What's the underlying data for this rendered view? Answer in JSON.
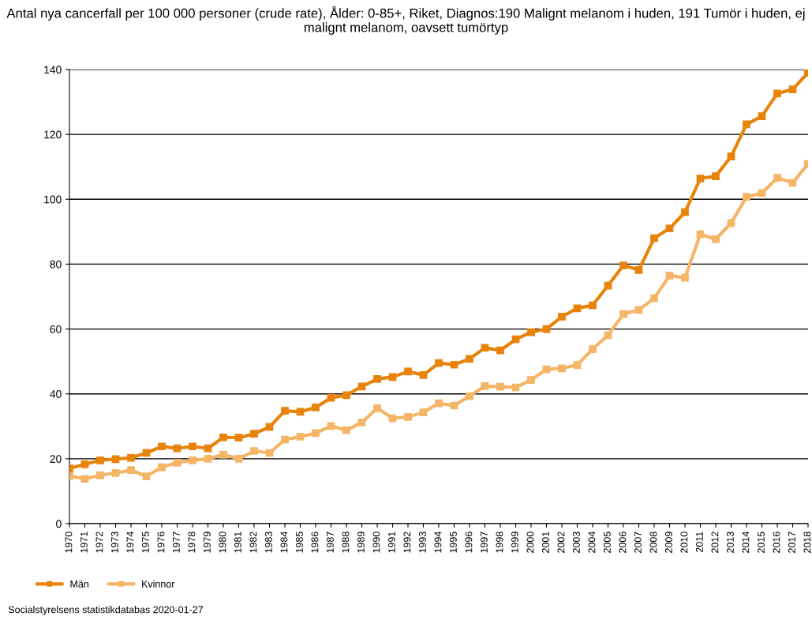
{
  "chart_data": {
    "type": "line",
    "title": "Antal nya cancerfall per 100 000 personer (crude rate), Ålder: 0-85+, Riket, Diagnos:190 Malignt melanom i huden, 191 Tumör i huden, ej malignt melanom, oavsett tumörtyp",
    "categories": [
      "1970",
      "1971",
      "1972",
      "1973",
      "1974",
      "1975",
      "1976",
      "1977",
      "1978",
      "1979",
      "1980",
      "1981",
      "1982",
      "1983",
      "1984",
      "1985",
      "1986",
      "1987",
      "1988",
      "1989",
      "1990",
      "1991",
      "1992",
      "1993",
      "1994",
      "1995",
      "1996",
      "1997",
      "1998",
      "1999",
      "2000",
      "2001",
      "2002",
      "2003",
      "2004",
      "2005",
      "2006",
      "2007",
      "2008",
      "2009",
      "2010",
      "2011",
      "2012",
      "2013",
      "2014",
      "2015",
      "2016",
      "2017",
      "2018"
    ],
    "series": [
      {
        "name": "Män",
        "color": "#e8830c",
        "values": [
          17,
          18.3,
          19.5,
          19.9,
          20.3,
          21.8,
          23.8,
          23.2,
          23.8,
          23.2,
          26.6,
          26.5,
          27.7,
          29.8,
          34.8,
          34.5,
          35.8,
          38.8,
          39.6,
          42.3,
          44.6,
          45.2,
          46.9,
          45.8,
          49.5,
          49,
          50.8,
          54.2,
          53.4,
          56.8,
          59,
          60,
          63.8,
          66.4,
          67.3,
          73.4,
          79.6,
          78.2,
          88,
          91,
          96,
          106.4,
          107.1,
          113.2,
          123.1,
          125.6,
          132.6,
          133.9,
          139
        ]
      },
      {
        "name": "Kvinnor",
        "color": "#f5b566",
        "values": [
          14.7,
          13.8,
          14.9,
          15.6,
          16.5,
          14.6,
          17.4,
          18.8,
          19.5,
          20,
          21.3,
          20,
          22.4,
          21.8,
          25.9,
          26.8,
          27.9,
          30.1,
          28.8,
          31.2,
          35.6,
          32.5,
          32.9,
          34.3,
          37.1,
          36.4,
          39.3,
          42.4,
          42.2,
          42,
          44.3,
          47.6,
          47.9,
          48.9,
          53.8,
          58.1,
          64.6,
          65.9,
          69.5,
          76.5,
          75.8,
          89.2,
          87.7,
          92.7,
          100.7,
          101.9,
          106.6,
          105.1,
          110.9
        ]
      }
    ],
    "ylim": [
      0,
      140
    ],
    "yticks": [
      0,
      20,
      40,
      60,
      80,
      100,
      120,
      140
    ],
    "grid": "y",
    "legend": "bottom left",
    "marker": "square",
    "line_style": "solid",
    "annotations": [
      "Socialstyrelsens statistikdatabas 2020-01-27"
    ]
  }
}
